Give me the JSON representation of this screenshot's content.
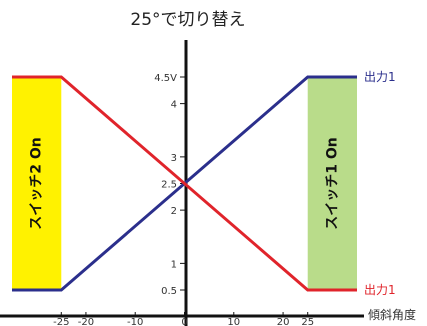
{
  "chart_data": {
    "type": "line",
    "title": "25°で切り替え",
    "xlabel": "傾斜角度",
    "ylabel": "",
    "xlim": [
      -35,
      35
    ],
    "ylim": [
      0,
      4.5
    ],
    "x_ticks": [
      {
        "value": -25,
        "label": "-25"
      },
      {
        "value": -20,
        "label": "-20"
      },
      {
        "value": -10,
        "label": "-10"
      },
      {
        "value": 0,
        "label": "0"
      },
      {
        "value": 10,
        "label": "10"
      },
      {
        "value": 20,
        "label": "20"
      },
      {
        "value": 25,
        "label": "25"
      }
    ],
    "y_ticks": [
      {
        "value": 4.5,
        "label": "4.5V"
      },
      {
        "value": 4,
        "label": "4"
      },
      {
        "value": 3,
        "label": "3"
      },
      {
        "value": 2.5,
        "label": "2.5"
      },
      {
        "value": 2,
        "label": "2"
      },
      {
        "value": 1,
        "label": "1"
      },
      {
        "value": 0.5,
        "label": "0.5"
      }
    ],
    "bands": [
      {
        "name": "switch2",
        "label": "スイッチ2 On",
        "x_from": -35,
        "x_to": -25,
        "color": "#fff200"
      },
      {
        "name": "switch1",
        "label": "スイッチ1 On",
        "x_from": 25,
        "x_to": 35,
        "color": "#b9dc8a"
      }
    ],
    "series": [
      {
        "name": "出力1",
        "color": "#2b2f8c",
        "x": [
          -35,
          -25,
          25,
          35
        ],
        "y": [
          0.5,
          0.5,
          4.5,
          4.5
        ]
      },
      {
        "name": "出力1",
        "color": "#e0242b",
        "x": [
          -35,
          -25,
          25,
          35
        ],
        "y": [
          4.5,
          4.5,
          0.5,
          0.5
        ]
      }
    ],
    "grid": false,
    "legend": "right"
  }
}
